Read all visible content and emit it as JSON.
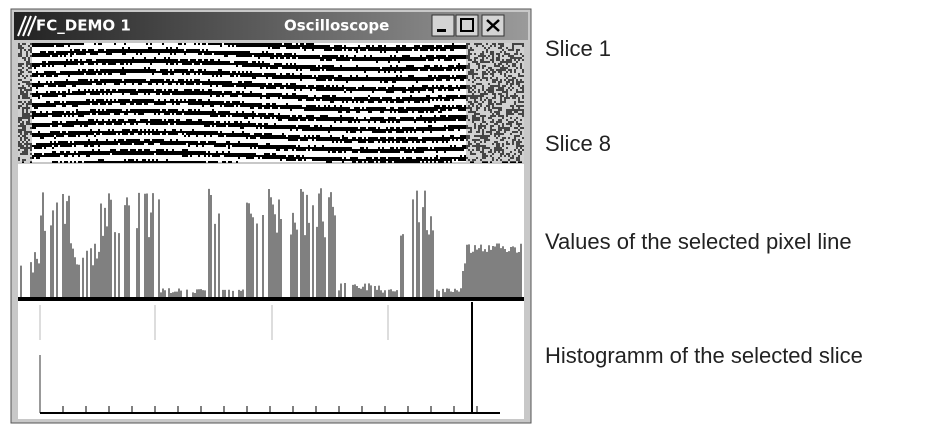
{
  "window": {
    "title": "FC_DEMO 1",
    "subtitle": "Oscilloscope"
  },
  "annotations": [
    "Slice 1",
    "Slice 8",
    "Values of the selected pixel line",
    "Histogramm of the selected slice"
  ]
}
